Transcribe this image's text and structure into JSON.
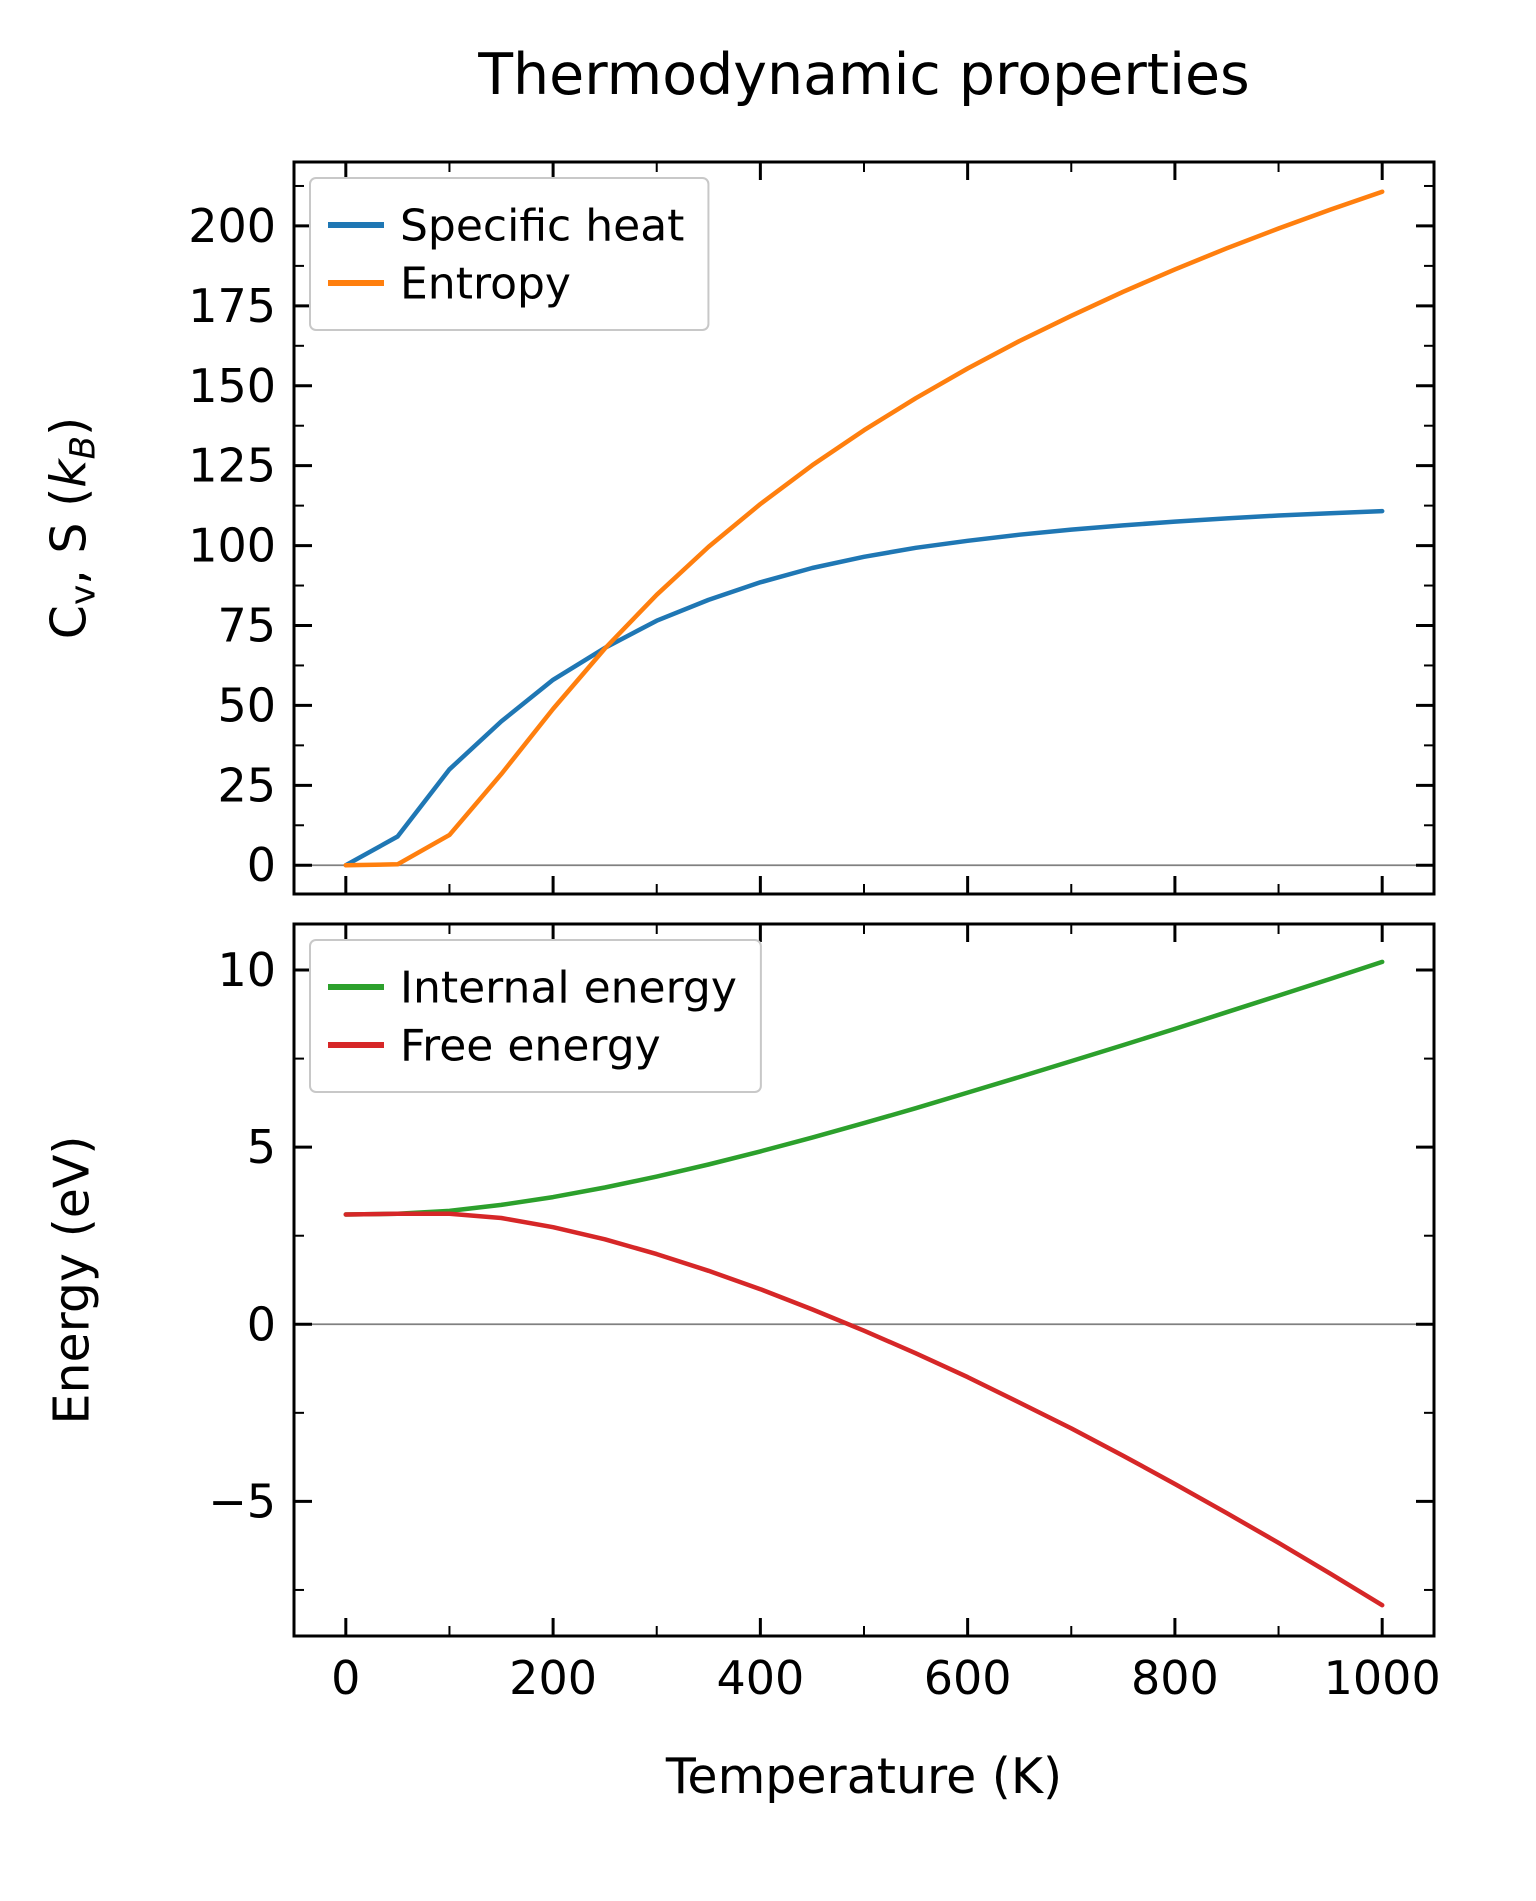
{
  "title": "Thermodynamic properties",
  "xlabel": "Temperature (K)",
  "ylabels": {
    "top_plain": "Cv, S (kB)",
    "top_segments": [
      {
        "text": "C"
      },
      {
        "text": "v",
        "style": "sub"
      },
      {
        "text": ", S ("
      },
      {
        "text": "k",
        "style": "italic"
      },
      {
        "text": "B",
        "style": "italic-sub"
      },
      {
        "text": ")"
      }
    ],
    "bottom": "Energy (eV)"
  },
  "colors": {
    "specific_heat": "#1f77b4",
    "entropy": "#ff7f0e",
    "internal_energy": "#2ca02c",
    "free_energy": "#d62728",
    "zero_line": "#808080",
    "axis": "#000000",
    "legend_border": "#c8c8c8",
    "legend_background": "#ffffff"
  },
  "chart_data": [
    {
      "type": "line",
      "panel": "top",
      "ylabel": "Cv, S (kB)",
      "xlabel": "Temperature (K)",
      "x": [
        0,
        50,
        100,
        150,
        200,
        250,
        300,
        350,
        400,
        450,
        500,
        550,
        600,
        650,
        700,
        750,
        800,
        850,
        900,
        950,
        1000
      ],
      "series": [
        {
          "name": "Specific heat",
          "color": "#1f77b4",
          "values": [
            0,
            9,
            30,
            45,
            58,
            68,
            76.5,
            83,
            88.5,
            93,
            96.5,
            99.3,
            101.5,
            103.4,
            105,
            106.3,
            107.5,
            108.5,
            109.4,
            110.1,
            110.8
          ]
        },
        {
          "name": "Entropy",
          "color": "#ff7f0e",
          "values": [
            0,
            0.3,
            9.5,
            28.5,
            48.9,
            67.8,
            84.6,
            99.6,
            113,
            125.1,
            136.1,
            146.1,
            155.4,
            164,
            171.9,
            179.4,
            186.4,
            193,
            199.2,
            205.1,
            210.7
          ]
        }
      ],
      "xlim": [
        -50,
        1050
      ],
      "ylim": [
        -9,
        220
      ],
      "xticks": [
        0,
        200,
        400,
        600,
        800,
        1000
      ],
      "yticks": [
        0,
        25,
        50,
        75,
        100,
        125,
        150,
        175,
        200
      ],
      "show_xticklabels": false,
      "zero_line": true,
      "grid": false,
      "legend_position": "upper-left"
    },
    {
      "type": "line",
      "panel": "bottom",
      "ylabel": "Energy (eV)",
      "xlabel": "Temperature (K)",
      "x": [
        0,
        50,
        100,
        150,
        200,
        250,
        300,
        350,
        400,
        450,
        500,
        550,
        600,
        650,
        700,
        750,
        800,
        850,
        900,
        950,
        1000
      ],
      "series": [
        {
          "name": "Internal energy",
          "color": "#2ca02c",
          "values": [
            3.1,
            3.12,
            3.2,
            3.37,
            3.59,
            3.86,
            4.17,
            4.51,
            4.88,
            5.27,
            5.68,
            6.1,
            6.54,
            6.98,
            7.43,
            7.88,
            8.34,
            8.81,
            9.28,
            9.75,
            10.23
          ]
        },
        {
          "name": "Free energy",
          "color": "#d62728",
          "values": [
            3.1,
            3.12,
            3.12,
            3.0,
            2.74,
            2.4,
            1.98,
            1.51,
            0.99,
            0.42,
            -0.18,
            -0.82,
            -1.49,
            -2.21,
            -2.94,
            -3.71,
            -4.51,
            -5.33,
            -6.17,
            -7.04,
            -7.93
          ]
        }
      ],
      "xlim": [
        -50,
        1050
      ],
      "ylim": [
        -8.8,
        11.3
      ],
      "xticks": [
        0,
        200,
        400,
        600,
        800,
        1000
      ],
      "yticks": [
        -5,
        0,
        5,
        10
      ],
      "show_xticklabels": true,
      "zero_line": true,
      "grid": false,
      "legend_position": "upper-left"
    }
  ]
}
